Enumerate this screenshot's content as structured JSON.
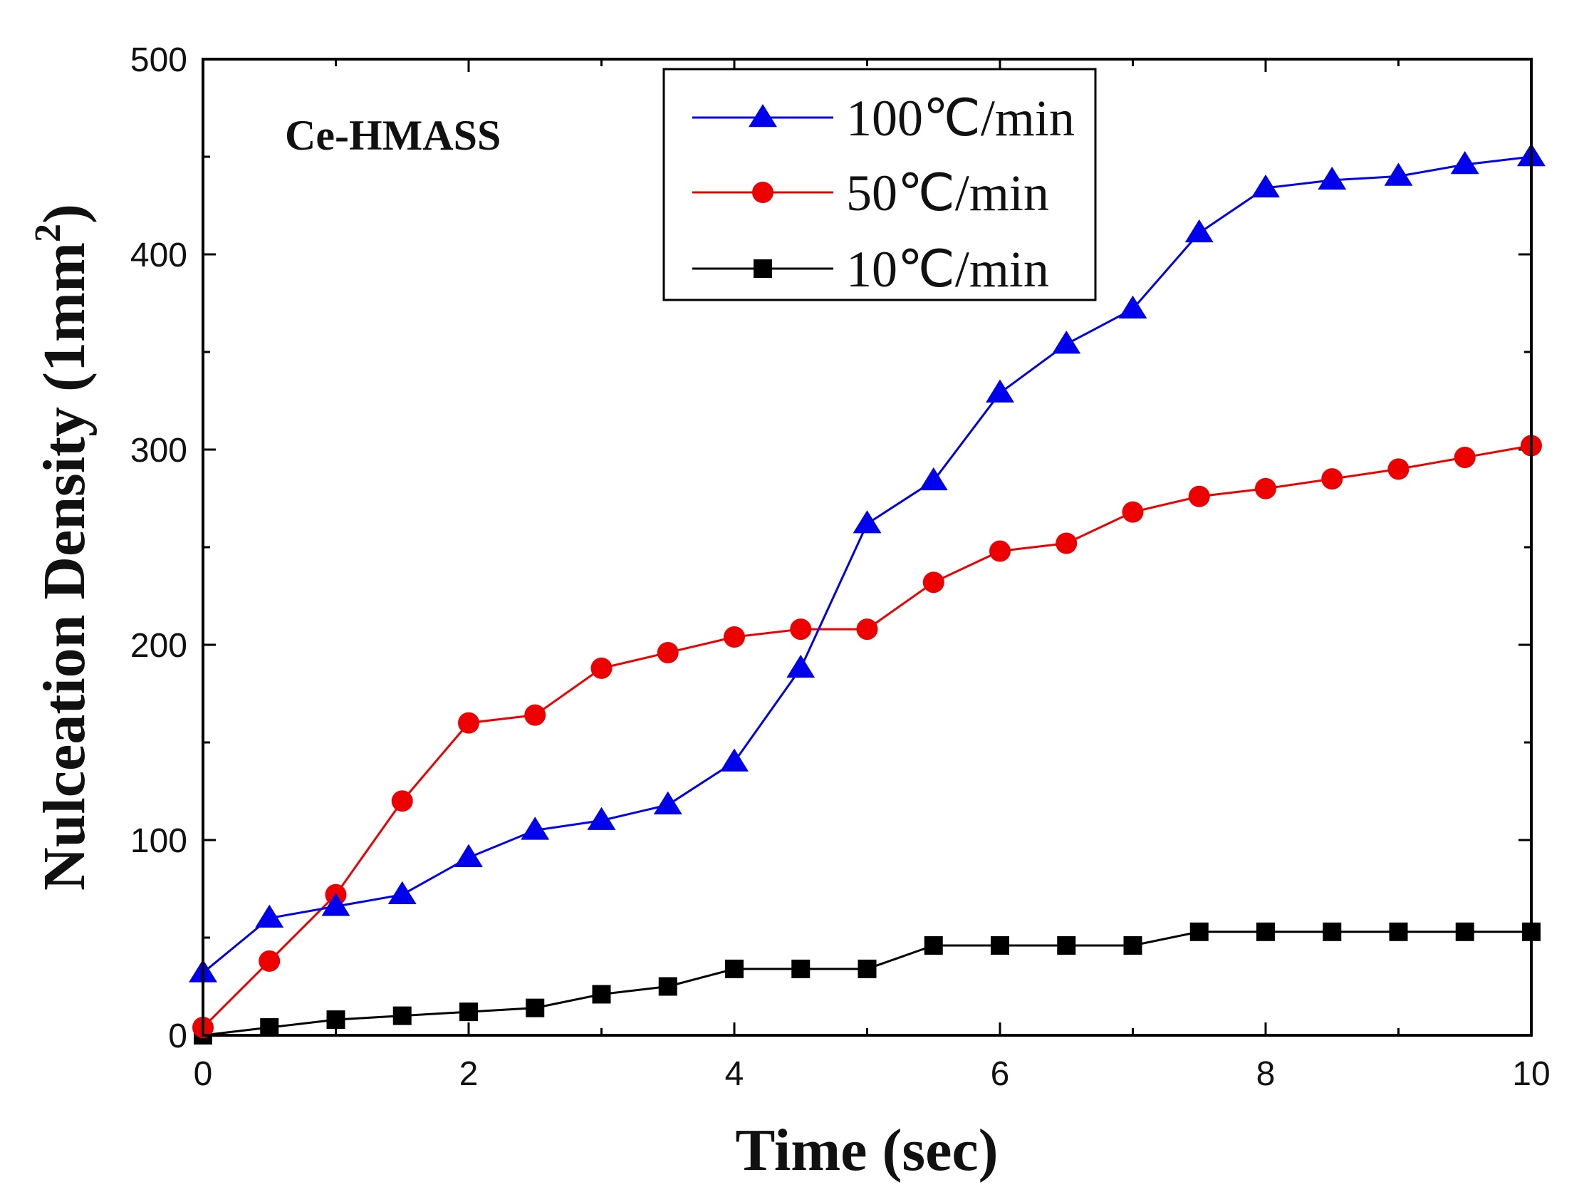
{
  "chart_data": {
    "type": "line",
    "title": "",
    "annotation": "Ce-HMASS",
    "xlabel": "Time (sec)",
    "ylabel_main": "Nulceation Density (1mm",
    "ylabel_sup": "2",
    "ylabel_tail": ")",
    "xlim": [
      0,
      10
    ],
    "ylim": [
      0,
      500
    ],
    "xticks": [
      0,
      2,
      4,
      6,
      8,
      10
    ],
    "yticks": [
      0,
      100,
      200,
      300,
      400,
      500
    ],
    "legend_position": "top-center",
    "x": [
      0,
      0.5,
      1,
      1.5,
      2,
      2.5,
      3,
      3.5,
      4,
      4.5,
      5,
      5.5,
      6,
      6.5,
      7,
      7.5,
      8,
      8.5,
      9,
      9.5,
      10
    ],
    "series": [
      {
        "name": "100℃/min",
        "color": "#0000ee",
        "marker": "triangle",
        "values": [
          32,
          60,
          66,
          72,
          91,
          105,
          110,
          118,
          140,
          188,
          262,
          284,
          329,
          354,
          372,
          411,
          434,
          438,
          440,
          446,
          450
        ]
      },
      {
        "name": "50℃/min",
        "color": "#ee0000",
        "marker": "circle",
        "values": [
          4,
          38,
          72,
          120,
          160,
          164,
          188,
          196,
          204,
          208,
          208,
          232,
          248,
          252,
          268,
          276,
          280,
          285,
          290,
          296,
          302
        ]
      },
      {
        "name": "10℃/min",
        "color": "#000000",
        "marker": "square",
        "values": [
          0,
          4,
          8,
          10,
          12,
          14,
          21,
          25,
          34,
          34,
          34,
          46,
          46,
          46,
          46,
          53,
          53,
          53,
          53,
          53,
          53
        ]
      }
    ]
  }
}
